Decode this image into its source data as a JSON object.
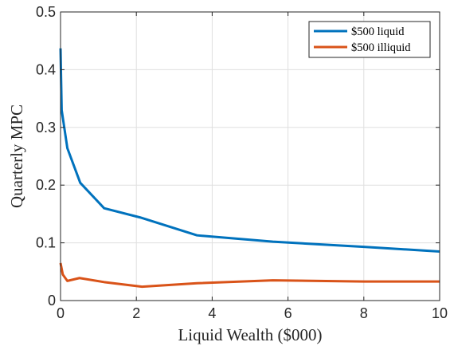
{
  "chart_data": {
    "type": "line",
    "title": "",
    "xlabel": "Liquid Wealth ($000)",
    "ylabel": "Quarterly MPC",
    "xlim": [
      0,
      10
    ],
    "ylim": [
      0,
      0.5
    ],
    "xticks": [
      0,
      2,
      4,
      6,
      8,
      10
    ],
    "xtick_labels": [
      "0",
      "2",
      "4",
      "6",
      "8",
      "10"
    ],
    "yticks": [
      0,
      0.1,
      0.2,
      0.3,
      0.4,
      0.5
    ],
    "ytick_labels": [
      "0",
      "0.1",
      "0.2",
      "0.3",
      "0.4",
      "0.5"
    ],
    "grid": true,
    "legend_position": "top-right",
    "series": [
      {
        "name": "$500 liquid",
        "color": "#0072BD",
        "x": [
          0,
          0.03,
          0.18,
          0.52,
          1.15,
          2.1,
          3.6,
          5.6,
          8.0,
          10.0
        ],
        "y": [
          0.437,
          0.33,
          0.264,
          0.204,
          0.16,
          0.144,
          0.113,
          0.102,
          0.093,
          0.085
        ]
      },
      {
        "name": "$500 illiquid",
        "color": "#D95319",
        "x": [
          0,
          0.06,
          0.18,
          0.5,
          1.15,
          2.15,
          3.6,
          5.6,
          8.0,
          10.0
        ],
        "y": [
          0.065,
          0.045,
          0.034,
          0.039,
          0.032,
          0.024,
          0.03,
          0.035,
          0.033,
          0.033
        ]
      }
    ]
  }
}
